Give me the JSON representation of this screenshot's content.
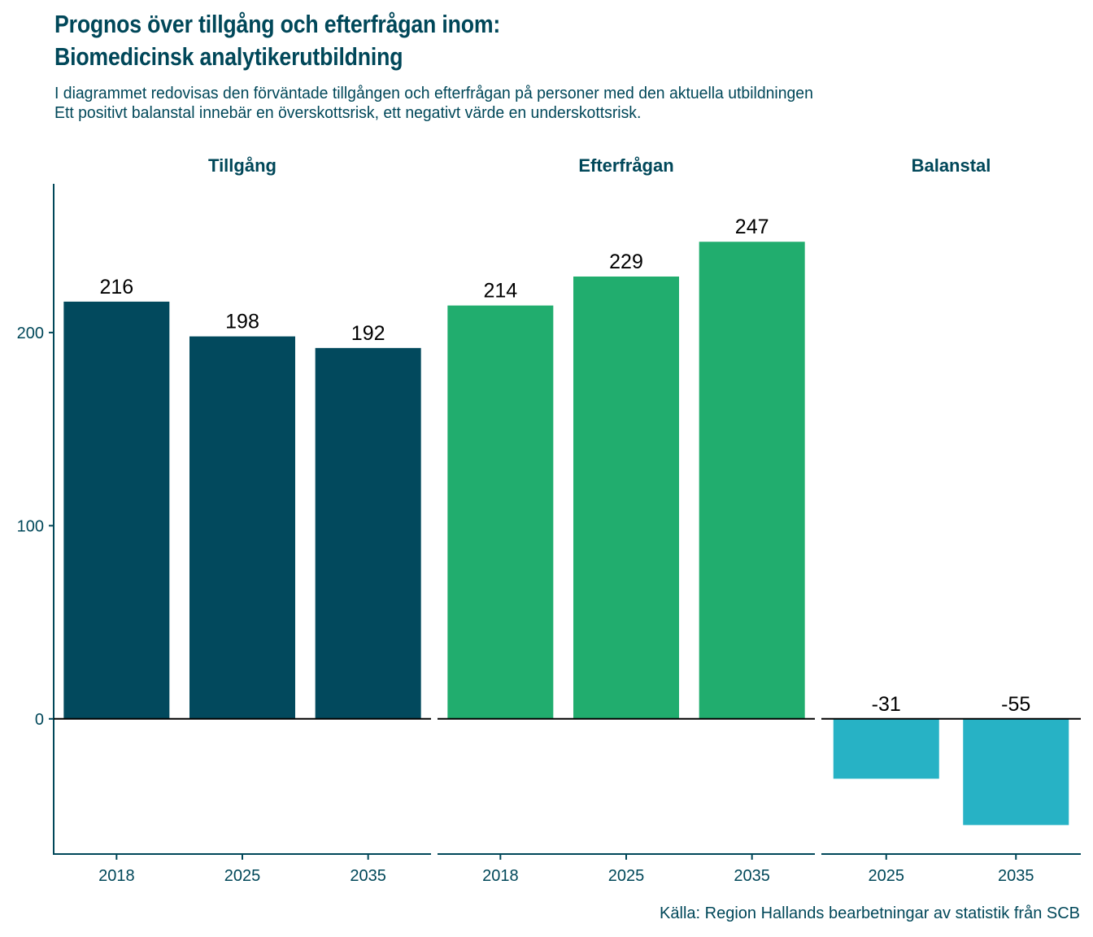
{
  "header": {
    "title_line1": "Prognos över tillgång och efterfrågan inom:",
    "title_line2": "Biomedicinsk analytikerutbildning",
    "subtitle_line1": "I diagrammet redovisas den förväntade tillgången och efterfrågan på personer med den aktuella utbildningen",
    "subtitle_line2": "Ett positivt balanstal innebär en överskottsrisk, ett negativt värde en underskottsrisk."
  },
  "caption": "Källa: Region Hallands bearbetningar av statistik från SCB",
  "chart_data": {
    "type": "bar",
    "title": "Prognos över tillgång och efterfrågan inom: Biomedicinsk analytikerutbildning",
    "xlabel": "",
    "ylabel": "",
    "ylim": [
      -70,
      277
    ],
    "yticks": [
      0,
      100,
      200
    ],
    "grid": false,
    "legend": "none",
    "facets": [
      {
        "name": "Tillgång",
        "categories": [
          "2018",
          "2025",
          "2035"
        ],
        "values": [
          216,
          198,
          192
        ],
        "labels": [
          "216",
          "198",
          "192"
        ],
        "color": "#02495D"
      },
      {
        "name": "Efterfrågan",
        "categories": [
          "2018",
          "2025",
          "2035"
        ],
        "values": [
          214,
          229,
          247
        ],
        "labels": [
          "214",
          "229",
          "247"
        ],
        "color": "#21AD6E"
      },
      {
        "name": "Balanstal",
        "categories": [
          "2025",
          "2035"
        ],
        "values": [
          -31,
          -55
        ],
        "labels": [
          "-31",
          "-55"
        ],
        "color": "#27B2C5"
      }
    ]
  }
}
